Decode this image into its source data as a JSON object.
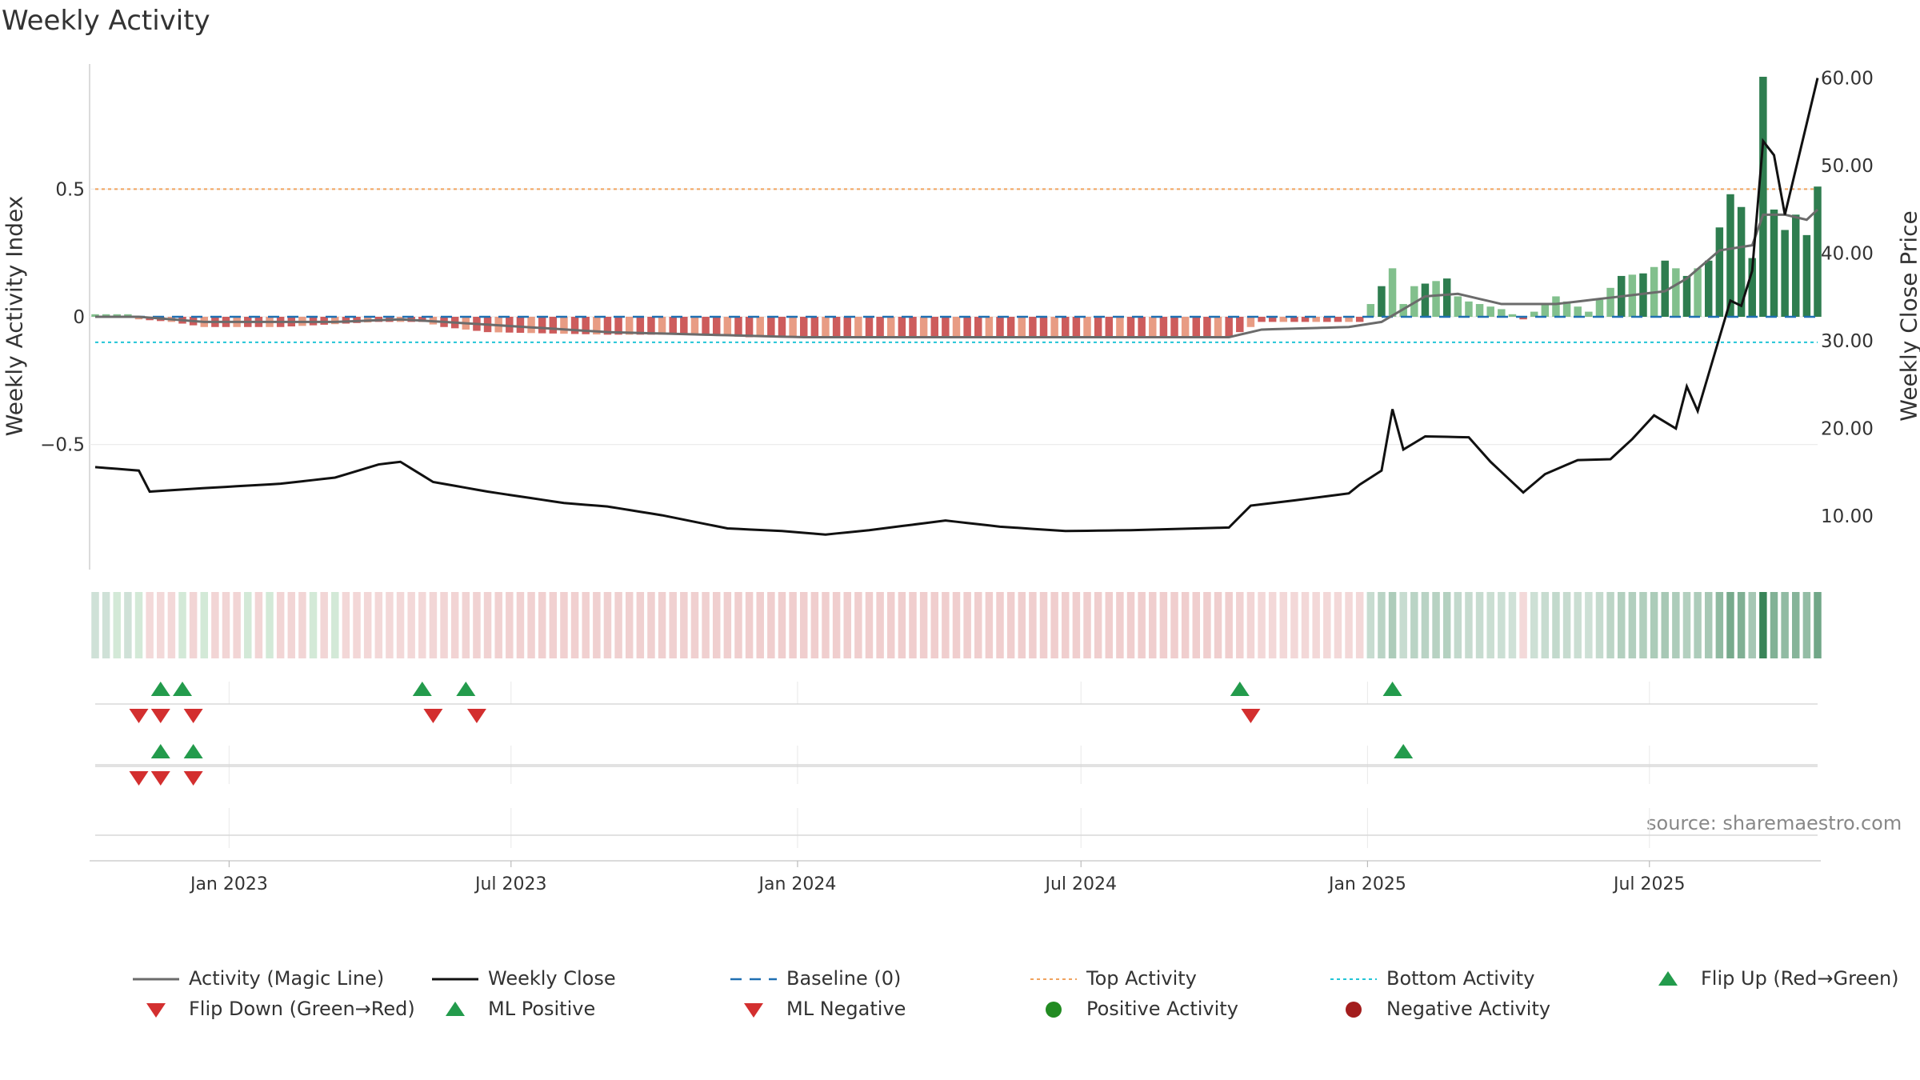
{
  "chart_data": {
    "type": "bar",
    "title": "Weekly Activity",
    "ylabel_left": "Weekly Activity Index",
    "ylabel_right": "Weekly Close Price",
    "source": "source: sharemaestro.com",
    "left_axis": {
      "ylim": [
        -0.99,
        0.99
      ],
      "ticks": [
        0.5,
        0,
        -0.5
      ],
      "tick_labels": [
        "0.5",
        "0",
        "−0.5"
      ]
    },
    "right_axis": {
      "ylim": [
        3.9,
        61.6
      ],
      "ticks": [
        60,
        50,
        40,
        30,
        20,
        10
      ],
      "tick_labels": [
        "60.00",
        "50.00",
        "40.00",
        "30.00",
        "20.00",
        "10.00"
      ]
    },
    "x_axis": {
      "start_date": "2022-10-07",
      "end_date": "2025-10-17",
      "ticks": [
        "2023-01-01",
        "2023-07-01",
        "2024-01-01",
        "2024-07-01",
        "2025-01-01",
        "2025-07-01"
      ],
      "tick_labels": [
        "Jan 2023",
        "Jul 2023",
        "Jan 2024",
        "Jul 2024",
        "Jan 2025",
        "Jul 2025"
      ]
    },
    "reference_lines": {
      "baseline": 0,
      "top_activity": 0.5,
      "bottom_activity": -0.1
    },
    "weekly_close_anchors": [
      [
        "2022-10-07",
        15.6
      ],
      [
        "2022-11-04",
        15.2
      ],
      [
        "2022-11-11",
        12.8
      ],
      [
        "2022-12-16",
        13.2
      ],
      [
        "2023-02-03",
        13.7
      ],
      [
        "2023-03-10",
        14.4
      ],
      [
        "2023-04-07",
        15.9
      ],
      [
        "2023-04-21",
        16.2
      ],
      [
        "2023-05-12",
        13.9
      ],
      [
        "2023-06-16",
        12.8
      ],
      [
        "2023-08-04",
        11.5
      ],
      [
        "2023-09-01",
        11.1
      ],
      [
        "2023-10-06",
        10.1
      ],
      [
        "2023-11-17",
        8.6
      ],
      [
        "2023-12-22",
        8.3
      ],
      [
        "2024-01-19",
        7.9
      ],
      [
        "2024-02-16",
        8.4
      ],
      [
        "2024-04-05",
        9.5
      ],
      [
        "2024-05-10",
        8.8
      ],
      [
        "2024-06-21",
        8.3
      ],
      [
        "2024-08-02",
        8.4
      ],
      [
        "2024-10-04",
        8.7
      ],
      [
        "2024-10-18",
        11.2
      ],
      [
        "2024-11-15",
        11.8
      ],
      [
        "2024-12-20",
        12.6
      ],
      [
        "2024-12-27",
        13.6
      ],
      [
        "2025-01-10",
        15.2
      ],
      [
        "2025-01-17",
        22.2
      ],
      [
        "2025-01-24",
        17.6
      ],
      [
        "2025-02-07",
        19.1
      ],
      [
        "2025-03-07",
        19.0
      ],
      [
        "2025-03-21",
        16.2
      ],
      [
        "2025-04-11",
        12.7
      ],
      [
        "2025-04-25",
        14.8
      ],
      [
        "2025-05-16",
        16.4
      ],
      [
        "2025-06-06",
        16.5
      ],
      [
        "2025-06-20",
        18.8
      ],
      [
        "2025-07-04",
        21.5
      ],
      [
        "2025-07-18",
        20.0
      ],
      [
        "2025-07-25",
        24.8
      ],
      [
        "2025-08-01",
        22.0
      ],
      [
        "2025-08-22",
        34.6
      ],
      [
        "2025-08-29",
        34.0
      ],
      [
        "2025-09-05",
        38.0
      ],
      [
        "2025-09-12",
        52.8
      ],
      [
        "2025-09-19",
        51.2
      ],
      [
        "2025-09-26",
        44.4
      ],
      [
        "2025-10-03",
        49.6
      ],
      [
        "2025-10-17",
        60.0
      ]
    ],
    "activity_bar_anchors": [
      [
        "2022-10-07",
        0.01
      ],
      [
        "2022-10-28",
        0.01
      ],
      [
        "2022-11-04",
        -0.01
      ],
      [
        "2022-11-25",
        -0.02
      ],
      [
        "2022-12-16",
        -0.04
      ],
      [
        "2023-02-03",
        -0.04
      ],
      [
        "2023-04-07",
        -0.02
      ],
      [
        "2023-05-05",
        -0.02
      ],
      [
        "2023-05-19",
        -0.04
      ],
      [
        "2023-06-16",
        -0.06
      ],
      [
        "2023-09-01",
        -0.07
      ],
      [
        "2023-11-03",
        -0.07
      ],
      [
        "2023-12-01",
        -0.08
      ],
      [
        "2024-08-02",
        -0.08
      ],
      [
        "2024-10-04",
        -0.08
      ],
      [
        "2024-10-25",
        -0.02
      ],
      [
        "2024-12-27",
        -0.02
      ],
      [
        "2025-01-17",
        0.19
      ],
      [
        "2025-01-24",
        0.05
      ],
      [
        "2025-01-31",
        0.12
      ],
      [
        "2025-02-14",
        0.14
      ],
      [
        "2025-02-21",
        0.15
      ],
      [
        "2025-02-28",
        0.08
      ],
      [
        "2025-03-07",
        0.06
      ],
      [
        "2025-03-28",
        0.03
      ],
      [
        "2025-04-11",
        -0.01
      ],
      [
        "2025-05-02",
        0.08
      ],
      [
        "2025-05-23",
        0.02
      ],
      [
        "2025-06-13",
        0.16
      ],
      [
        "2025-06-27",
        0.17
      ],
      [
        "2025-07-11",
        0.22
      ],
      [
        "2025-07-25",
        0.16
      ],
      [
        "2025-08-08",
        0.22
      ],
      [
        "2025-08-22",
        0.48
      ],
      [
        "2025-08-29",
        0.43
      ],
      [
        "2025-09-05",
        0.23
      ],
      [
        "2025-09-12",
        0.94
      ],
      [
        "2025-09-19",
        0.42
      ],
      [
        "2025-09-26",
        0.34
      ],
      [
        "2025-10-03",
        0.4
      ],
      [
        "2025-10-10",
        0.32
      ],
      [
        "2025-10-17",
        0.51
      ]
    ],
    "magic_line_anchors": [
      [
        "2022-10-07",
        0.0
      ],
      [
        "2022-11-04",
        0.0
      ],
      [
        "2022-12-16",
        -0.02
      ],
      [
        "2023-03-10",
        -0.02
      ],
      [
        "2023-04-21",
        -0.01
      ],
      [
        "2023-05-19",
        -0.02
      ],
      [
        "2023-09-01",
        -0.06
      ],
      [
        "2024-01-05",
        -0.08
      ],
      [
        "2024-04-05",
        -0.08
      ],
      [
        "2024-06-07",
        -0.08
      ],
      [
        "2024-10-04",
        -0.08
      ],
      [
        "2024-10-25",
        -0.05
      ],
      [
        "2024-12-20",
        -0.04
      ],
      [
        "2025-01-10",
        -0.02
      ],
      [
        "2025-02-07",
        0.08
      ],
      [
        "2025-02-28",
        0.09
      ],
      [
        "2025-03-28",
        0.05
      ],
      [
        "2025-05-02",
        0.05
      ],
      [
        "2025-06-13",
        0.08
      ],
      [
        "2025-07-11",
        0.1
      ],
      [
        "2025-07-25",
        0.15
      ],
      [
        "2025-08-15",
        0.26
      ],
      [
        "2025-09-05",
        0.28
      ],
      [
        "2025-09-12",
        0.4
      ],
      [
        "2025-09-26",
        0.4
      ],
      [
        "2025-10-10",
        0.38
      ],
      [
        "2025-10-17",
        0.42
      ]
    ],
    "flip_up": [
      "2022-11-18",
      "2022-12-02",
      "2023-05-05",
      "2023-06-02",
      "2024-10-11",
      "2025-01-17"
    ],
    "flip_down": [
      "2022-11-04",
      "2022-11-18",
      "2022-12-09",
      "2023-05-12",
      "2023-06-09",
      "2024-10-18"
    ],
    "ml_positive": [
      "2022-11-18",
      "2022-12-09",
      "2025-01-24"
    ],
    "ml_negative": [
      "2022-11-04",
      "2022-11-18",
      "2022-12-09"
    ],
    "colors": {
      "strong_green": "#2e7d4f",
      "light_green": "#82c08d",
      "strong_red": "#cd5c5c",
      "light_red": "#e89c84",
      "weekly_close": "#111111",
      "magic_line": "#6b6b6b",
      "baseline": "#1f6fb2",
      "top_activity": "#f0a35e",
      "bottom_activity": "#22c5d6",
      "flip_up": "#239b4c",
      "flip_down": "#d32f2f",
      "positive_activity": "#228b22",
      "negative_activity": "#a31d1d"
    },
    "legend": [
      {
        "label": "Activity (Magic Line)",
        "marker": "gray-line-icon"
      },
      {
        "label": "Weekly Close",
        "marker": "black-line-icon"
      },
      {
        "label": "Baseline (0)",
        "marker": "blue-dashed-line-icon"
      },
      {
        "label": "Top Activity",
        "marker": "orange-dotted-line-icon"
      },
      {
        "label": "Bottom Activity",
        "marker": "cyan-dotted-line-icon"
      },
      {
        "label": "Flip Up (Red→Green)",
        "marker": "green-triangle-up-icon"
      },
      {
        "label": "Flip Down (Green→Red)",
        "marker": "red-triangle-down-icon"
      },
      {
        "label": "ML Positive",
        "marker": "green-triangle-up-icon"
      },
      {
        "label": "ML Negative",
        "marker": "red-triangle-down-icon"
      },
      {
        "label": "Positive Activity",
        "marker": "green-circle-icon"
      },
      {
        "label": "Negative Activity",
        "marker": "red-circle-icon"
      }
    ]
  }
}
